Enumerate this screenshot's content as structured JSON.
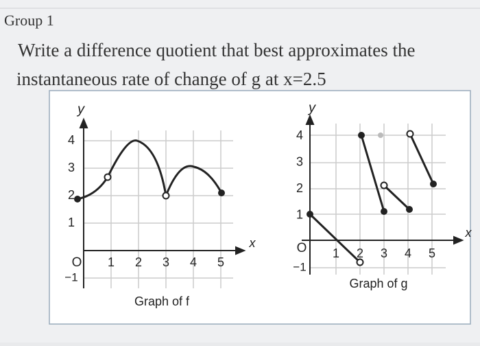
{
  "header": {
    "title": "Group 1"
  },
  "question": {
    "lines": [
      "Write a difference quotient that best approximates the",
      "instantaneous rate of change of g at x=2.5"
    ]
  },
  "graphs": [
    {
      "caption": "Graph of f",
      "y_label": "y",
      "x_label": "x",
      "origin": "O",
      "x_ticks": [
        "1",
        "2",
        "3",
        "4",
        "5"
      ],
      "y_ticks": [
        "1",
        "2",
        "3",
        "4"
      ],
      "neg_y": "−1"
    },
    {
      "caption": "Graph of g",
      "y_label": "y",
      "x_label": "x",
      "origin": "O",
      "x_ticks": [
        "1",
        "2",
        "3",
        "4",
        "5"
      ],
      "y_ticks": [
        "1",
        "2",
        "3",
        "4"
      ],
      "neg_y": "−1"
    }
  ]
}
